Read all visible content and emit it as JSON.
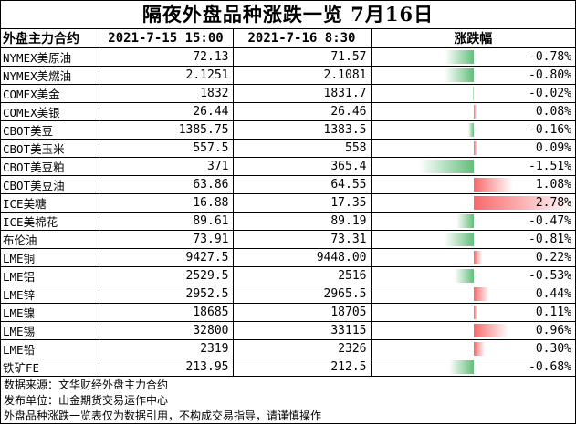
{
  "title": "隔夜外盘品种涨跌一览 7月16日",
  "headers": {
    "name": "外盘主力合约",
    "col1": "2021-7-15 15:00",
    "col2": "2021-7-16 8:30",
    "change": "涨跌幅"
  },
  "rows": [
    {
      "name": "NYMEX美原油",
      "v1": "72.13",
      "v2": "71.57",
      "chg": "-0.78%",
      "pct": -0.78
    },
    {
      "name": "NYMEX美燃油",
      "v1": "2.1251",
      "v2": "2.1081",
      "chg": "-0.80%",
      "pct": -0.8
    },
    {
      "name": "COMEX美金",
      "v1": "1832",
      "v2": "1831.7",
      "chg": "-0.02%",
      "pct": -0.02
    },
    {
      "name": "COMEX美银",
      "v1": "26.44",
      "v2": "26.46",
      "chg": "0.08%",
      "pct": 0.08
    },
    {
      "name": "CBOT美豆",
      "v1": "1385.75",
      "v2": "1383.5",
      "chg": "-0.16%",
      "pct": -0.16
    },
    {
      "name": "CBOT美玉米",
      "v1": "557.5",
      "v2": "558",
      "chg": "0.09%",
      "pct": 0.09
    },
    {
      "name": "CBOT美豆粕",
      "v1": "371",
      "v2": "365.4",
      "chg": "-1.51%",
      "pct": -1.51
    },
    {
      "name": "CBOT美豆油",
      "v1": "63.86",
      "v2": "64.55",
      "chg": "1.08%",
      "pct": 1.08
    },
    {
      "name": "ICE美糖",
      "v1": "16.88",
      "v2": "17.35",
      "chg": "2.78%",
      "pct": 2.78
    },
    {
      "name": "ICE美棉花",
      "v1": "89.61",
      "v2": "89.19",
      "chg": "-0.47%",
      "pct": -0.47
    },
    {
      "name": "布伦油",
      "v1": "73.91",
      "v2": "73.31",
      "chg": "-0.81%",
      "pct": -0.81
    },
    {
      "name": "LME铜",
      "v1": "9427.5",
      "v2": "9448.00",
      "chg": "0.22%",
      "pct": 0.22
    },
    {
      "name": "LME铝",
      "v1": "2529.5",
      "v2": "2516",
      "chg": "-0.53%",
      "pct": -0.53
    },
    {
      "name": "LME锌",
      "v1": "2952.5",
      "v2": "2965.5",
      "chg": "0.44%",
      "pct": 0.44
    },
    {
      "name": "LME镍",
      "v1": "18685",
      "v2": "18705",
      "chg": "0.11%",
      "pct": 0.11
    },
    {
      "name": "LME锡",
      "v1": "32800",
      "v2": "33115",
      "chg": "0.96%",
      "pct": 0.96
    },
    {
      "name": "LME铅",
      "v1": "2319",
      "v2": "2326",
      "chg": "0.30%",
      "pct": 0.3
    },
    {
      "name": "铁矿FE",
      "v1": "213.95",
      "v2": "212.5",
      "chg": "-0.68%",
      "pct": -0.68
    }
  ],
  "footer": {
    "line1": "数据来源：文华财经外盘主力合约",
    "line2": "发布单位：山金期货交易运作中心",
    "line3": "外盘品种涨跌一览表仅为数据引用，不构成交易指导，请谨慎操作"
  },
  "colors": {
    "negative_bar": "#63be7b",
    "positive_bar": "#f8696b"
  }
}
